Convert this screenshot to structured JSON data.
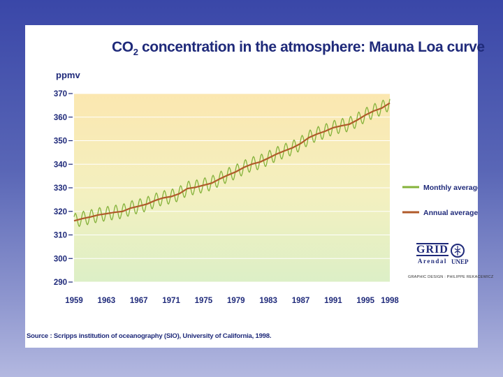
{
  "colors": {
    "background_top": "#3a47a8",
    "monthly": "#84b23a",
    "annual": "#b05a2a",
    "text": "#1f2a7a"
  },
  "chart_data": {
    "type": "line",
    "title_prefix": "CO",
    "title_subscript": "2",
    "title_rest": " concentration in the atmosphere: Mauna Loa curve",
    "ylabel": "ppmv",
    "ylim": [
      290,
      370
    ],
    "xlim": [
      1959,
      1998
    ],
    "yticks": [
      "370",
      "360",
      "350",
      "340",
      "330",
      "320",
      "310",
      "300",
      "290"
    ],
    "xticks": [
      "1959",
      "1963",
      "1967",
      "1971",
      "1975",
      "1979",
      "1983",
      "1987",
      "1991",
      "1995",
      "1998"
    ],
    "series": [
      {
        "name": "Monthly average",
        "seasonal_amplitude_ppmv": 3.0,
        "note": "seasonal oscillation around the annual average"
      },
      {
        "name": "Annual average",
        "x": [
          1959,
          1960,
          1961,
          1962,
          1963,
          1964,
          1965,
          1966,
          1967,
          1968,
          1969,
          1970,
          1971,
          1972,
          1973,
          1974,
          1975,
          1976,
          1977,
          1978,
          1979,
          1980,
          1981,
          1982,
          1983,
          1984,
          1985,
          1986,
          1987,
          1988,
          1989,
          1990,
          1991,
          1992,
          1993,
          1994,
          1995,
          1996,
          1997,
          1998
        ],
        "values": [
          316.0,
          316.9,
          317.6,
          318.5,
          319.0,
          319.6,
          320.0,
          321.4,
          322.2,
          323.1,
          324.6,
          325.7,
          326.3,
          327.5,
          329.7,
          330.2,
          331.1,
          332.0,
          333.8,
          335.4,
          336.8,
          338.7,
          340.1,
          341.0,
          342.6,
          344.3,
          345.7,
          347.0,
          348.8,
          351.3,
          352.8,
          354.0,
          355.5,
          356.3,
          357.0,
          358.8,
          360.9,
          362.6,
          363.8,
          366.0
        ]
      }
    ],
    "legend": [
      {
        "label": "Monthly average",
        "color": "#84b23a"
      },
      {
        "label": "Annual average",
        "color": "#b05a2a"
      }
    ]
  },
  "source_text": "Source : Scripps institution of oceanography (SIO), University of California, 1998.",
  "logo": {
    "grid": "GRID",
    "arendal": "Arendal",
    "unep": "UNEP",
    "credit": "GRAPHIC DESIGN : PHILIPPE REKACEWICZ"
  }
}
